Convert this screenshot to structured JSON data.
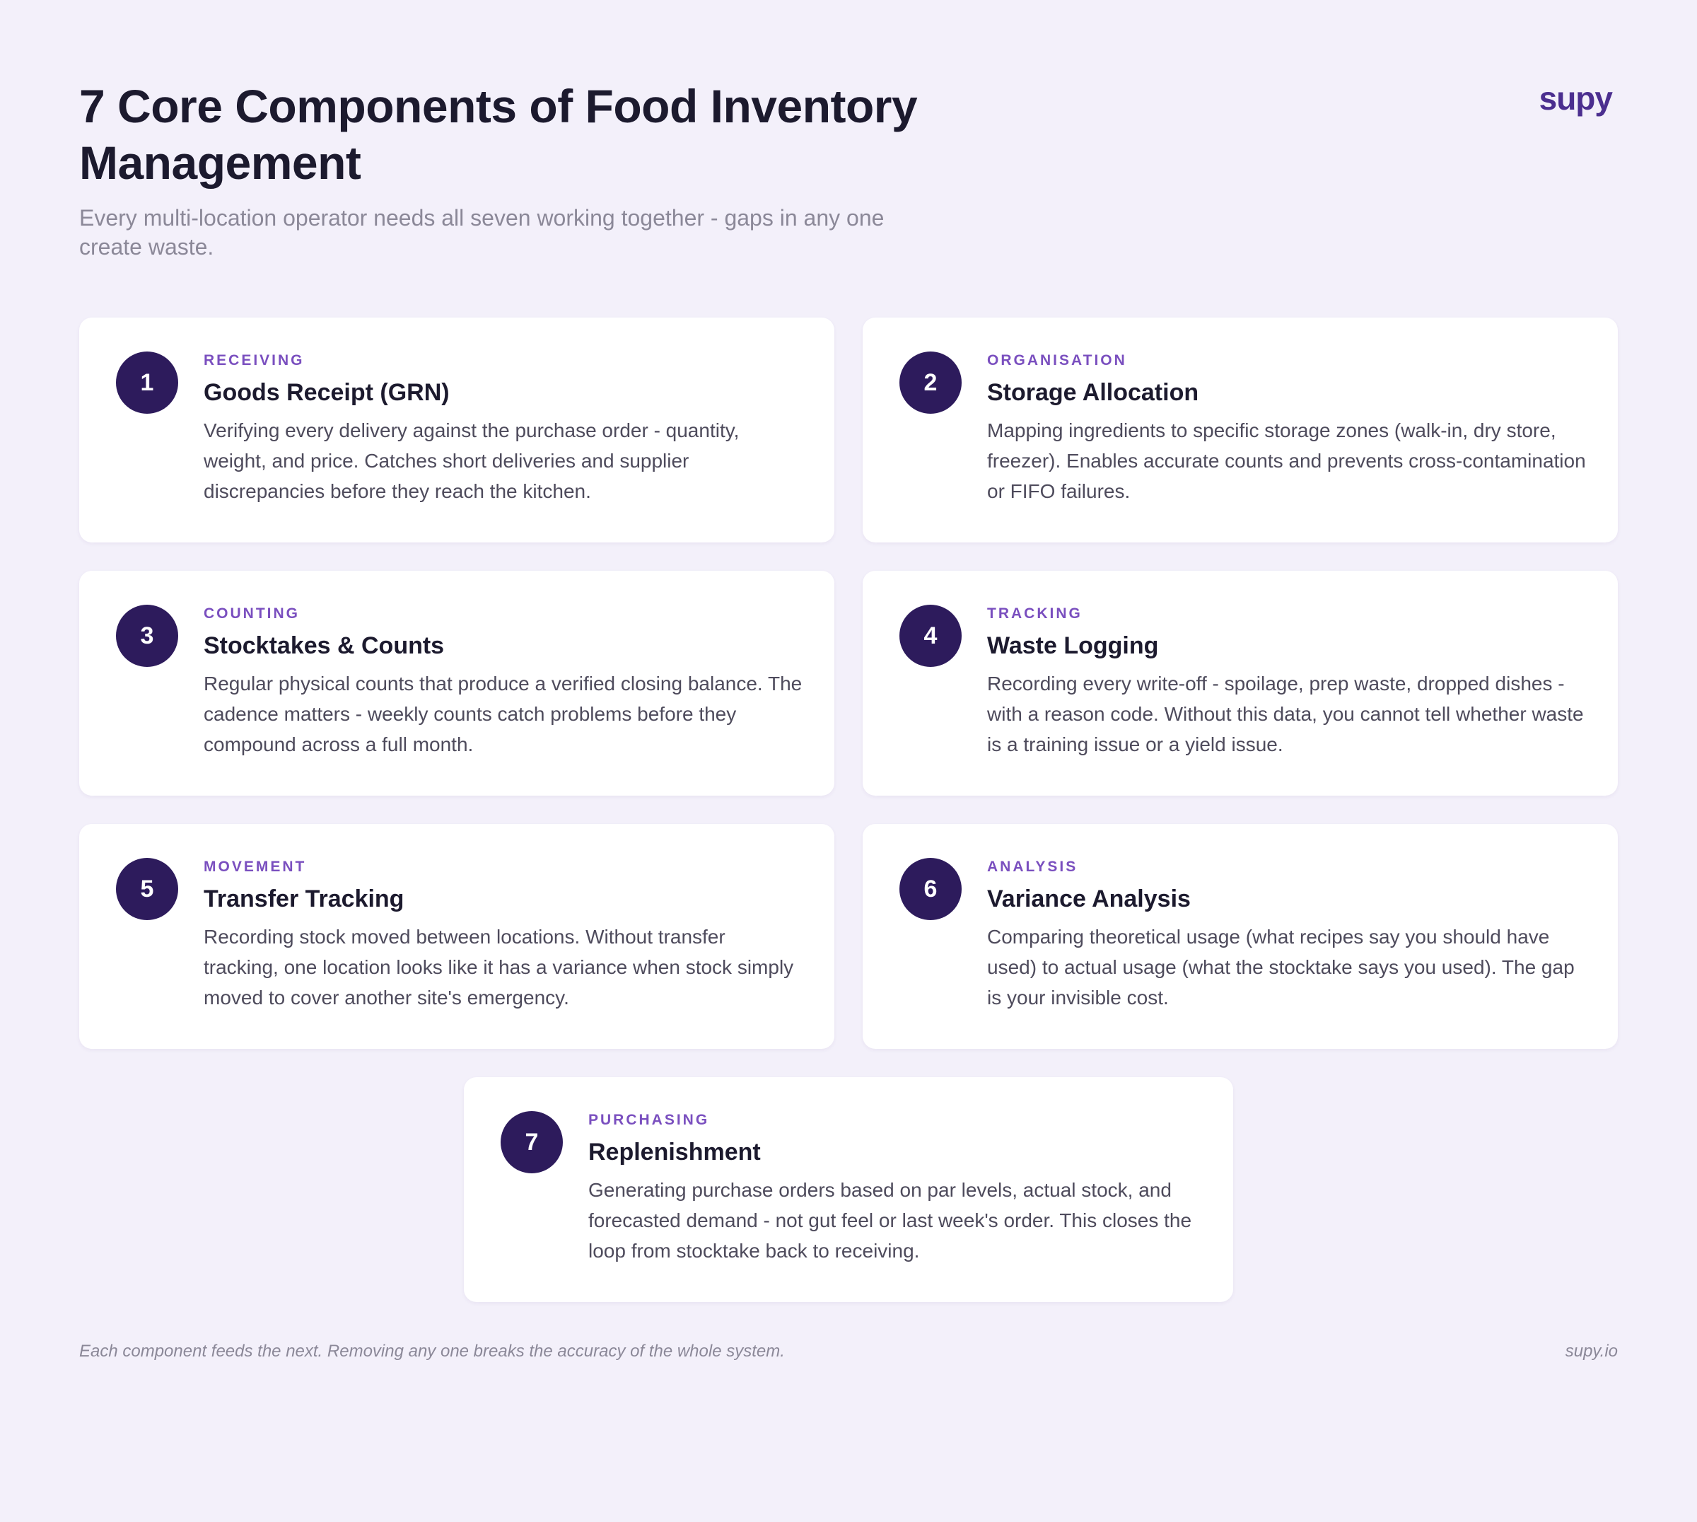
{
  "header": {
    "title": "7 Core Components of Food Inventory Management",
    "subtitle": "Every multi-location operator needs all seven working together - gaps in any one create waste.",
    "logo": "supy"
  },
  "cards": [
    {
      "number": "1",
      "tag": "RECEIVING",
      "title": "Goods Receipt (GRN)",
      "description": "Verifying every delivery against the purchase order - quantity, weight, and price. Catches short deliveries and supplier discrepancies before they reach the kitchen."
    },
    {
      "number": "2",
      "tag": "ORGANISATION",
      "title": "Storage Allocation",
      "description": "Mapping ingredients to specific storage zones (walk-in, dry store, freezer). Enables accurate counts and prevents cross-contamination or FIFO failures."
    },
    {
      "number": "3",
      "tag": "COUNTING",
      "title": "Stocktakes & Counts",
      "description": "Regular physical counts that produce a verified closing balance. The cadence matters - weekly counts catch problems before they compound across a full month."
    },
    {
      "number": "4",
      "tag": "TRACKING",
      "title": "Waste Logging",
      "description": "Recording every write-off - spoilage, prep waste, dropped dishes - with a reason code. Without this data, you cannot tell whether waste is a training issue or a yield issue."
    },
    {
      "number": "5",
      "tag": "MOVEMENT",
      "title": "Transfer Tracking",
      "description": "Recording stock moved between locations. Without transfer tracking, one location looks like it has a variance when stock simply moved to cover another site's emergency."
    },
    {
      "number": "6",
      "tag": "ANALYSIS",
      "title": "Variance Analysis",
      "description": "Comparing theoretical usage (what recipes say you should have used) to actual usage (what the stocktake says you used). The gap is your invisible cost."
    },
    {
      "number": "7",
      "tag": "PURCHASING",
      "title": "Replenishment",
      "description": "Generating purchase orders based on par levels, actual stock, and forecasted demand - not gut feel or last week's order. This closes the loop from stocktake back to receiving."
    }
  ],
  "footer": {
    "note": "Each component feeds the next. Removing any one breaks the accuracy of the whole system.",
    "url": "supy.io"
  },
  "colors": {
    "background": "#f3f0fa",
    "brand": "#4b2e8f",
    "number_circle": "#2d1b5c",
    "tag": "#7a4fbf"
  }
}
